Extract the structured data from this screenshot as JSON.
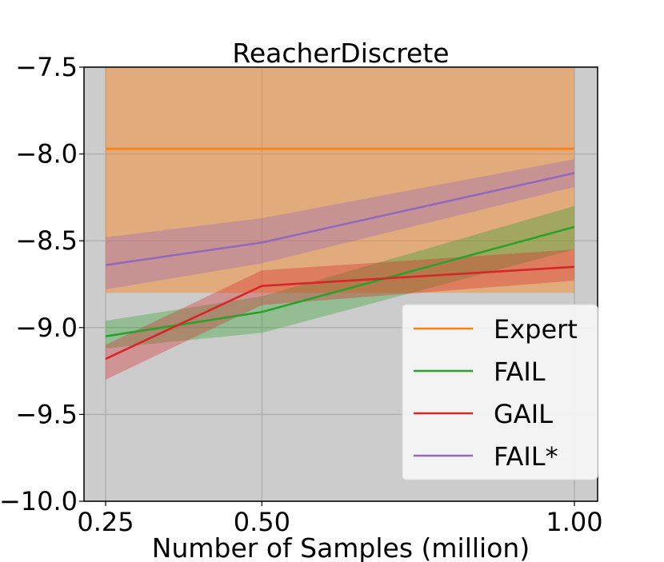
{
  "chart_data": {
    "type": "line",
    "title": "ReacherDiscrete",
    "xlabel": "Number of Samples (million)",
    "ylabel": "",
    "xlim": [
      0.25,
      1.0
    ],
    "ylim": [
      -10.0,
      -7.5
    ],
    "xticks": [
      0.25,
      0.5,
      1.0
    ],
    "xtick_labels": [
      "0.25",
      "0.50",
      "1.00"
    ],
    "yticks": [
      -7.5,
      -8.0,
      -8.5,
      -9.0,
      -9.5,
      -10.0
    ],
    "ytick_labels": [
      "−7.5",
      "−8.0",
      "−8.5",
      "−9.0",
      "−9.5",
      "−10.0"
    ],
    "grid": true,
    "background": "#cccccc",
    "legend_position": "lower-right",
    "x": [
      0.25,
      0.5,
      1.0
    ],
    "series": [
      {
        "name": "Expert",
        "color": "#ff7f0e",
        "values": [
          -7.97,
          -7.97,
          -7.97
        ],
        "lower": [
          -8.8,
          -8.8,
          -8.8
        ],
        "upper": [
          -7.5,
          -7.5,
          -7.5
        ]
      },
      {
        "name": "FAIL",
        "color": "#2ca02c",
        "values": [
          -9.05,
          -8.91,
          -8.42
        ],
        "lower": [
          -9.12,
          -9.03,
          -8.55
        ],
        "upper": [
          -8.96,
          -8.82,
          -8.3
        ]
      },
      {
        "name": "GAIL",
        "color": "#d62728",
        "values": [
          -9.18,
          -8.76,
          -8.65
        ],
        "lower": [
          -9.3,
          -8.87,
          -8.73
        ],
        "upper": [
          -9.1,
          -8.67,
          -8.55
        ]
      },
      {
        "name": "FAIL*",
        "color": "#9467bd",
        "values": [
          -8.64,
          -8.51,
          -8.11
        ],
        "lower": [
          -8.78,
          -8.63,
          -8.19
        ],
        "upper": [
          -8.48,
          -8.37,
          -8.03
        ]
      }
    ]
  }
}
